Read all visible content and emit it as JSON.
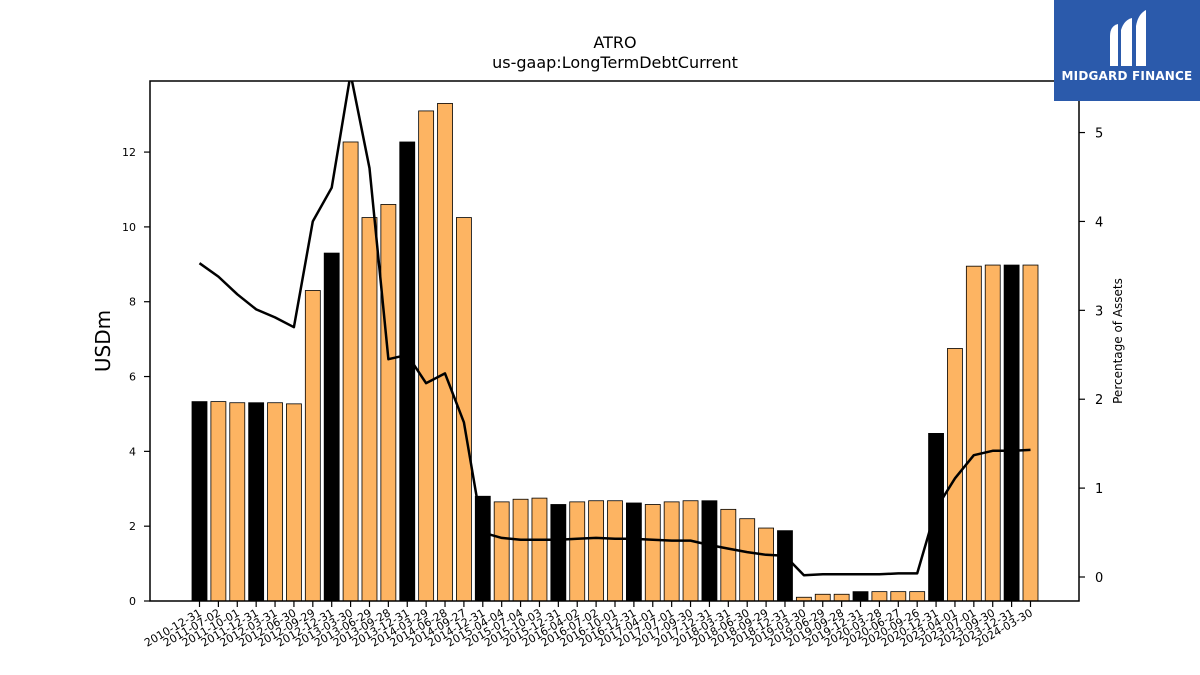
{
  "logo": {
    "text": "MIDGARD FINANCE"
  },
  "chart_data": {
    "type": "bar",
    "title": "ATRO",
    "subtitle": "us-gaap:LongTermDebtCurrent",
    "ylabel": "USDm",
    "y2label": "Percentage of Assets",
    "ylim": [
      0,
      13.9
    ],
    "y2lim": [
      -0.27,
      5.58
    ],
    "yticks": [
      0,
      2,
      4,
      6,
      8,
      10,
      12
    ],
    "y2ticks": [
      0,
      1,
      2,
      3,
      4,
      5
    ],
    "colors": {
      "bar_default": "#fdb462",
      "bar_highlight": "#000000",
      "line": "#000000"
    },
    "categories": [
      "2010-12-31",
      "2011-07-02",
      "2011-10-01",
      "2011-12-31",
      "2012-03-31",
      "2012-06-30",
      "2012-09-29",
      "2012-12-31",
      "2013-03-30",
      "2013-06-29",
      "2013-09-28",
      "2013-12-31",
      "2014-03-29",
      "2014-06-28",
      "2014-09-27",
      "2014-12-31",
      "2015-04-04",
      "2015-07-04",
      "2015-10-03",
      "2015-12-31",
      "2016-04-02",
      "2016-07-02",
      "2016-10-01",
      "2016-12-31",
      "2017-04-01",
      "2017-07-01",
      "2017-09-30",
      "2017-12-31",
      "2018-03-31",
      "2018-06-30",
      "2018-09-29",
      "2018-12-31",
      "2019-03-30",
      "2019-06-29",
      "2019-09-28",
      "2019-12-31",
      "2020-03-28",
      "2020-06-27",
      "2020-09-26",
      "2020-12-31",
      "2023-04-01",
      "2023-07-01",
      "2023-09-30",
      "2023-12-31",
      "2024-03-30"
    ],
    "series": [
      {
        "kind": "bar",
        "values": [
          5.33,
          5.33,
          5.3,
          5.3,
          5.3,
          5.27,
          8.3,
          9.3,
          12.27,
          10.25,
          10.6,
          12.27,
          13.1,
          13.3,
          10.25,
          2.8,
          2.65,
          2.72,
          2.75,
          2.58,
          2.65,
          2.68,
          2.68,
          2.62,
          2.58,
          2.65,
          2.68,
          2.68,
          2.45,
          2.2,
          1.95,
          1.88,
          0.1,
          0.18,
          0.18,
          0.25,
          0.25,
          0.25,
          0.25,
          4.48,
          6.75,
          8.95,
          8.98,
          8.98,
          8.98
        ],
        "highlight": [
          true,
          false,
          false,
          true,
          false,
          false,
          false,
          true,
          false,
          false,
          false,
          true,
          false,
          false,
          false,
          true,
          false,
          false,
          false,
          true,
          false,
          false,
          false,
          true,
          false,
          false,
          false,
          true,
          false,
          false,
          false,
          true,
          false,
          false,
          false,
          true,
          false,
          false,
          false,
          true,
          false,
          false,
          false,
          true,
          false
        ]
      },
      {
        "kind": "line",
        "axis": "right",
        "values": [
          3.53,
          3.38,
          3.18,
          3.01,
          2.92,
          2.81,
          4.0,
          4.38,
          5.66,
          4.6,
          2.45,
          2.5,
          2.18,
          2.29,
          1.74,
          0.5,
          0.44,
          0.42,
          0.42,
          0.42,
          0.43,
          0.44,
          0.43,
          0.43,
          0.42,
          0.41,
          0.41,
          0.36,
          0.32,
          0.28,
          0.25,
          0.24,
          0.02,
          0.03,
          0.03,
          0.03,
          0.03,
          0.04,
          0.04,
          0.77,
          1.11,
          1.37,
          1.42,
          1.42,
          1.43
        ]
      }
    ]
  }
}
